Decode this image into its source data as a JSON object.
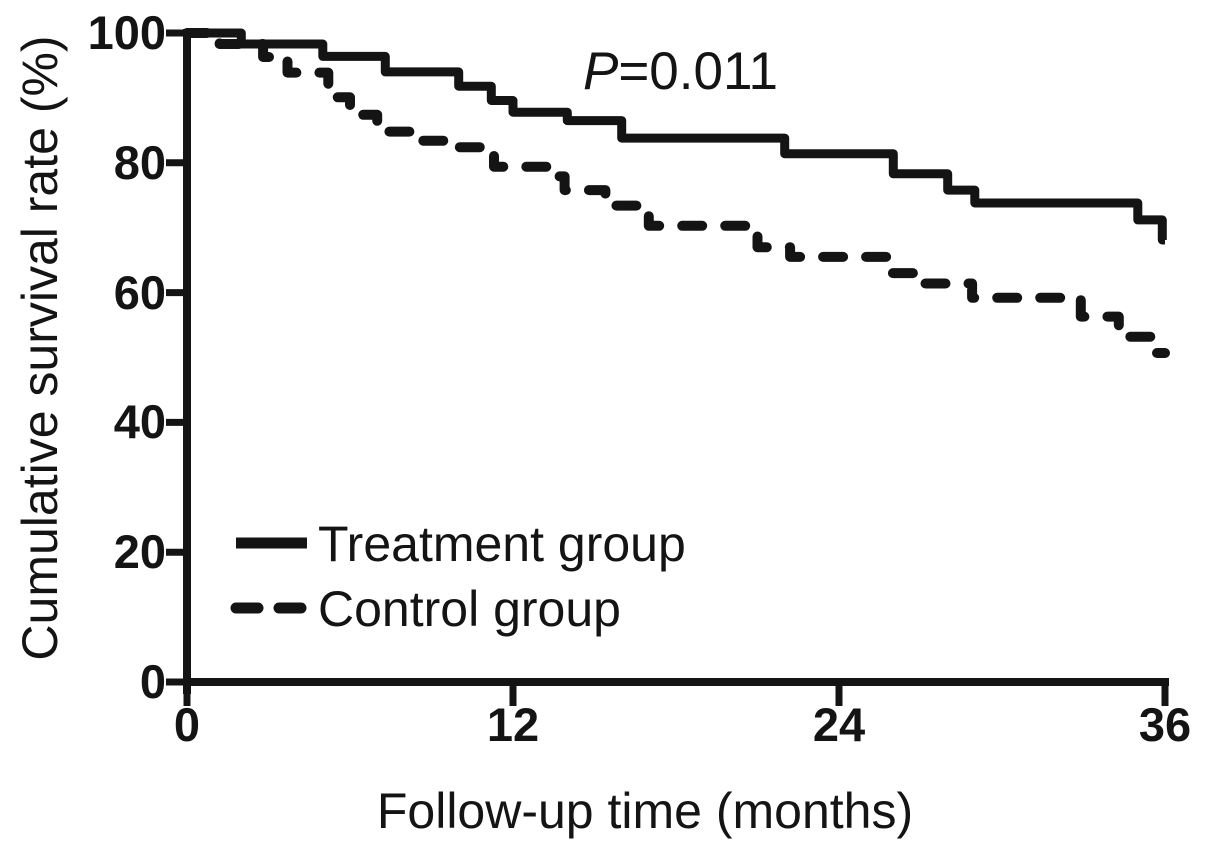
{
  "figure": {
    "background": "#ffffff",
    "ink": "#141414"
  },
  "annotation": {
    "italic": "P",
    "rest": "=0.011"
  },
  "chart_data": {
    "type": "line",
    "subtype": "kaplan-meier-step",
    "title": "",
    "xlabel": "Follow-up time (months)",
    "ylabel": "Cumulative survival rate (%)",
    "xlim": [
      0,
      36
    ],
    "ylim": [
      0,
      100
    ],
    "xticks": [
      0,
      12,
      24,
      36
    ],
    "yticks": [
      0,
      20,
      40,
      60,
      80,
      100
    ],
    "grid": false,
    "legend_position": "inside lower-left",
    "annotation": "P=0.011",
    "series": [
      {
        "name": "Treatment group",
        "style": "solid",
        "color": "#141414",
        "points": [
          [
            0,
            100
          ],
          [
            2,
            98.3
          ],
          [
            5,
            96.4
          ],
          [
            7.3,
            94
          ],
          [
            10,
            91.8
          ],
          [
            11.2,
            89.6
          ],
          [
            12,
            87.8
          ],
          [
            14,
            86.5
          ],
          [
            16,
            83.8
          ],
          [
            22,
            81.4
          ],
          [
            26,
            78.3
          ],
          [
            28,
            75.8
          ],
          [
            29,
            73.8
          ],
          [
            35,
            71.2
          ],
          [
            35.9,
            68.1
          ]
        ]
      },
      {
        "name": "Control group",
        "style": "dashed",
        "color": "#141414",
        "points": [
          [
            0,
            100
          ],
          [
            1.2,
            98.3
          ],
          [
            2.8,
            96.3
          ],
          [
            3.7,
            93.9
          ],
          [
            5.2,
            90.1
          ],
          [
            6,
            87.4
          ],
          [
            7,
            84.8
          ],
          [
            8.5,
            83.4
          ],
          [
            10,
            82.4
          ],
          [
            11.3,
            79.4
          ],
          [
            13.3,
            77.9
          ],
          [
            13.9,
            75.8
          ],
          [
            15.4,
            73.4
          ],
          [
            17,
            70.3
          ],
          [
            21,
            67
          ],
          [
            22.2,
            65.5
          ],
          [
            25.9,
            63
          ],
          [
            26.9,
            61.4
          ],
          [
            28.9,
            59.2
          ],
          [
            32.9,
            56.3
          ],
          [
            34.3,
            53.2
          ],
          [
            35.7,
            50.7
          ]
        ]
      }
    ]
  }
}
